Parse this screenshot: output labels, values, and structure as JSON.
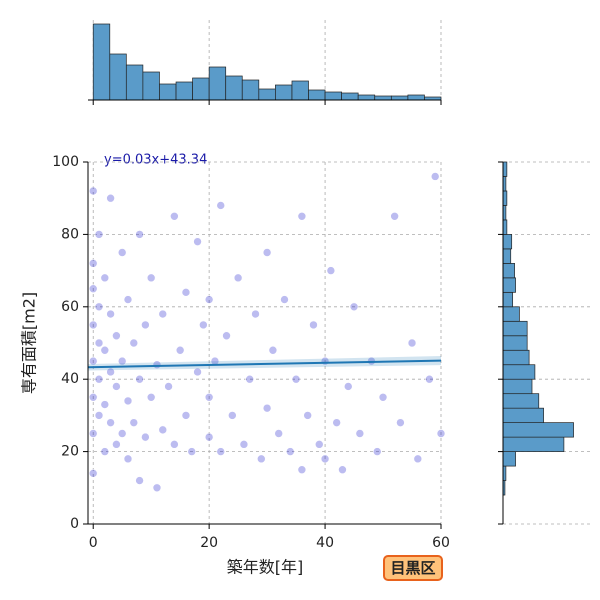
{
  "chart_data": [
    {
      "type": "scatter",
      "xlabel": "築年数[年]",
      "ylabel": "専有面積[m2]",
      "annotation": "y=0.03x+43.34",
      "color": "#2222cc",
      "x": [
        0,
        0,
        0,
        0,
        0,
        0,
        0,
        0,
        1,
        1,
        1,
        1,
        1,
        2,
        2,
        2,
        2,
        3,
        3,
        3,
        3,
        4,
        4,
        4,
        5,
        5,
        5,
        6,
        6,
        6,
        7,
        7,
        8,
        8,
        8,
        9,
        9,
        10,
        10,
        11,
        11,
        12,
        12,
        13,
        14,
        14,
        15,
        16,
        16,
        17,
        18,
        18,
        19,
        20,
        20,
        20,
        21,
        22,
        22,
        23,
        24,
        25,
        26,
        27,
        28,
        29,
        30,
        30,
        31,
        32,
        33,
        34,
        35,
        36,
        36,
        37,
        38,
        39,
        40,
        40,
        41,
        42,
        43,
        44,
        45,
        46,
        48,
        49,
        50,
        52,
        53,
        55,
        56,
        58,
        59,
        60
      ],
      "y": [
        14,
        25,
        35,
        45,
        55,
        65,
        72,
        92,
        30,
        40,
        50,
        60,
        80,
        20,
        33,
        48,
        68,
        28,
        42,
        58,
        90,
        22,
        38,
        52,
        25,
        45,
        75,
        18,
        34,
        62,
        28,
        50,
        12,
        40,
        80,
        24,
        55,
        35,
        68,
        10,
        44,
        26,
        58,
        38,
        22,
        85,
        48,
        30,
        64,
        20,
        42,
        78,
        55,
        24,
        35,
        62,
        45,
        20,
        88,
        52,
        30,
        68,
        22,
        40,
        58,
        18,
        32,
        75,
        48,
        25,
        62,
        20,
        40,
        15,
        85,
        30,
        55,
        22,
        45,
        18,
        70,
        28,
        15,
        38,
        60,
        25,
        45,
        20,
        35,
        85,
        28,
        50,
        18,
        40,
        96,
        25
      ],
      "regression": {
        "x": [
          -0.9,
          60
        ],
        "y": [
          43.31,
          45.14
        ],
        "lower": [
          42.4,
          43.9
        ],
        "upper": [
          44.2,
          46.4
        ],
        "color": "#1f77b4"
      },
      "xlim": [
        -0.9,
        60
      ],
      "ylim": [
        0,
        100
      ],
      "xticks": [
        0,
        20,
        40,
        60
      ],
      "yticks": [
        0,
        20,
        40,
        60,
        80,
        100
      ],
      "grid": true
    },
    {
      "type": "histogram",
      "orientation": "vertical",
      "color": "#5a9bc9",
      "bins": [
        0,
        2.86,
        5.71,
        8.57,
        11.43,
        14.29,
        17.14,
        20,
        22.86,
        25.71,
        28.57,
        31.43,
        34.29,
        37.14,
        40,
        42.86,
        45.71,
        48.57,
        51.43,
        54.29,
        57.14,
        60
      ],
      "values": [
        228,
        138,
        105,
        84,
        48,
        54,
        66,
        99,
        72,
        60,
        33,
        45,
        57,
        30,
        24,
        21,
        15,
        12,
        12,
        15,
        9
      ],
      "xlim": [
        -0.9,
        60
      ],
      "ylim": [
        0,
        240
      ],
      "xticks": [
        0,
        20,
        40,
        60
      ],
      "grid": true
    },
    {
      "type": "histogram",
      "orientation": "horizontal",
      "color": "#5a9bc9",
      "bins": [
        8,
        12,
        16,
        20,
        24,
        28,
        32,
        36,
        40,
        44,
        48,
        52,
        56,
        60,
        64,
        68,
        72,
        76,
        80,
        84,
        88,
        92,
        96,
        100
      ],
      "values": [
        10,
        15,
        65,
        315,
        365,
        210,
        185,
        150,
        165,
        135,
        125,
        125,
        85,
        50,
        65,
        60,
        40,
        45,
        20,
        15,
        20,
        15,
        20
      ],
      "xlim": [
        0,
        450
      ],
      "ylim": [
        0,
        100
      ],
      "yticks": [
        0,
        20,
        40,
        60,
        80,
        100
      ],
      "grid": true
    }
  ],
  "badge": "目黒区"
}
